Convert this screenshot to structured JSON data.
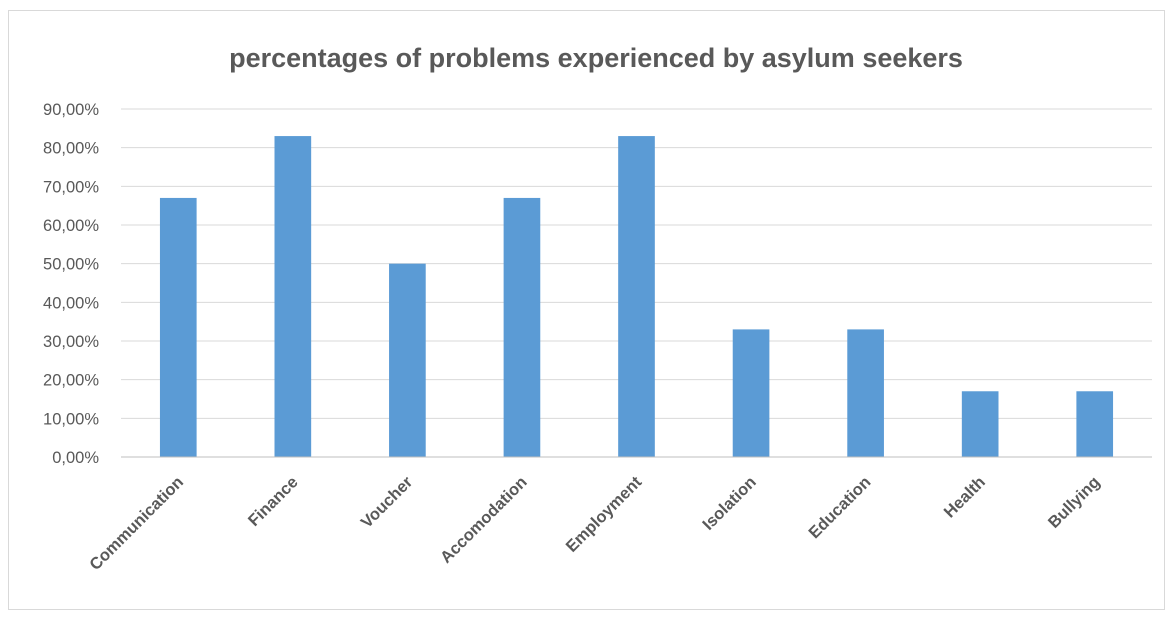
{
  "chart_data": {
    "type": "bar",
    "title": "percentages of problems experienced by asylum seekers",
    "categories": [
      "Communication",
      "Finance",
      "Voucher",
      "Accomodation",
      "Employment",
      "Isolation",
      "Education",
      "Health",
      "Bullying"
    ],
    "values": [
      67,
      83,
      50,
      67,
      83,
      33,
      33,
      17,
      17
    ],
    "ylim": [
      0,
      90
    ],
    "yticks": [
      0,
      10,
      20,
      30,
      40,
      50,
      60,
      70,
      80,
      90
    ],
    "ytick_labels": [
      "0,00%",
      "10,00%",
      "20,00%",
      "30,00%",
      "40,00%",
      "50,00%",
      "60,00%",
      "70,00%",
      "80,00%",
      "90,00%"
    ],
    "xlabel": "",
    "ylabel": "",
    "grid": true,
    "legend": "none",
    "bar_color": "#5b9bd5"
  }
}
